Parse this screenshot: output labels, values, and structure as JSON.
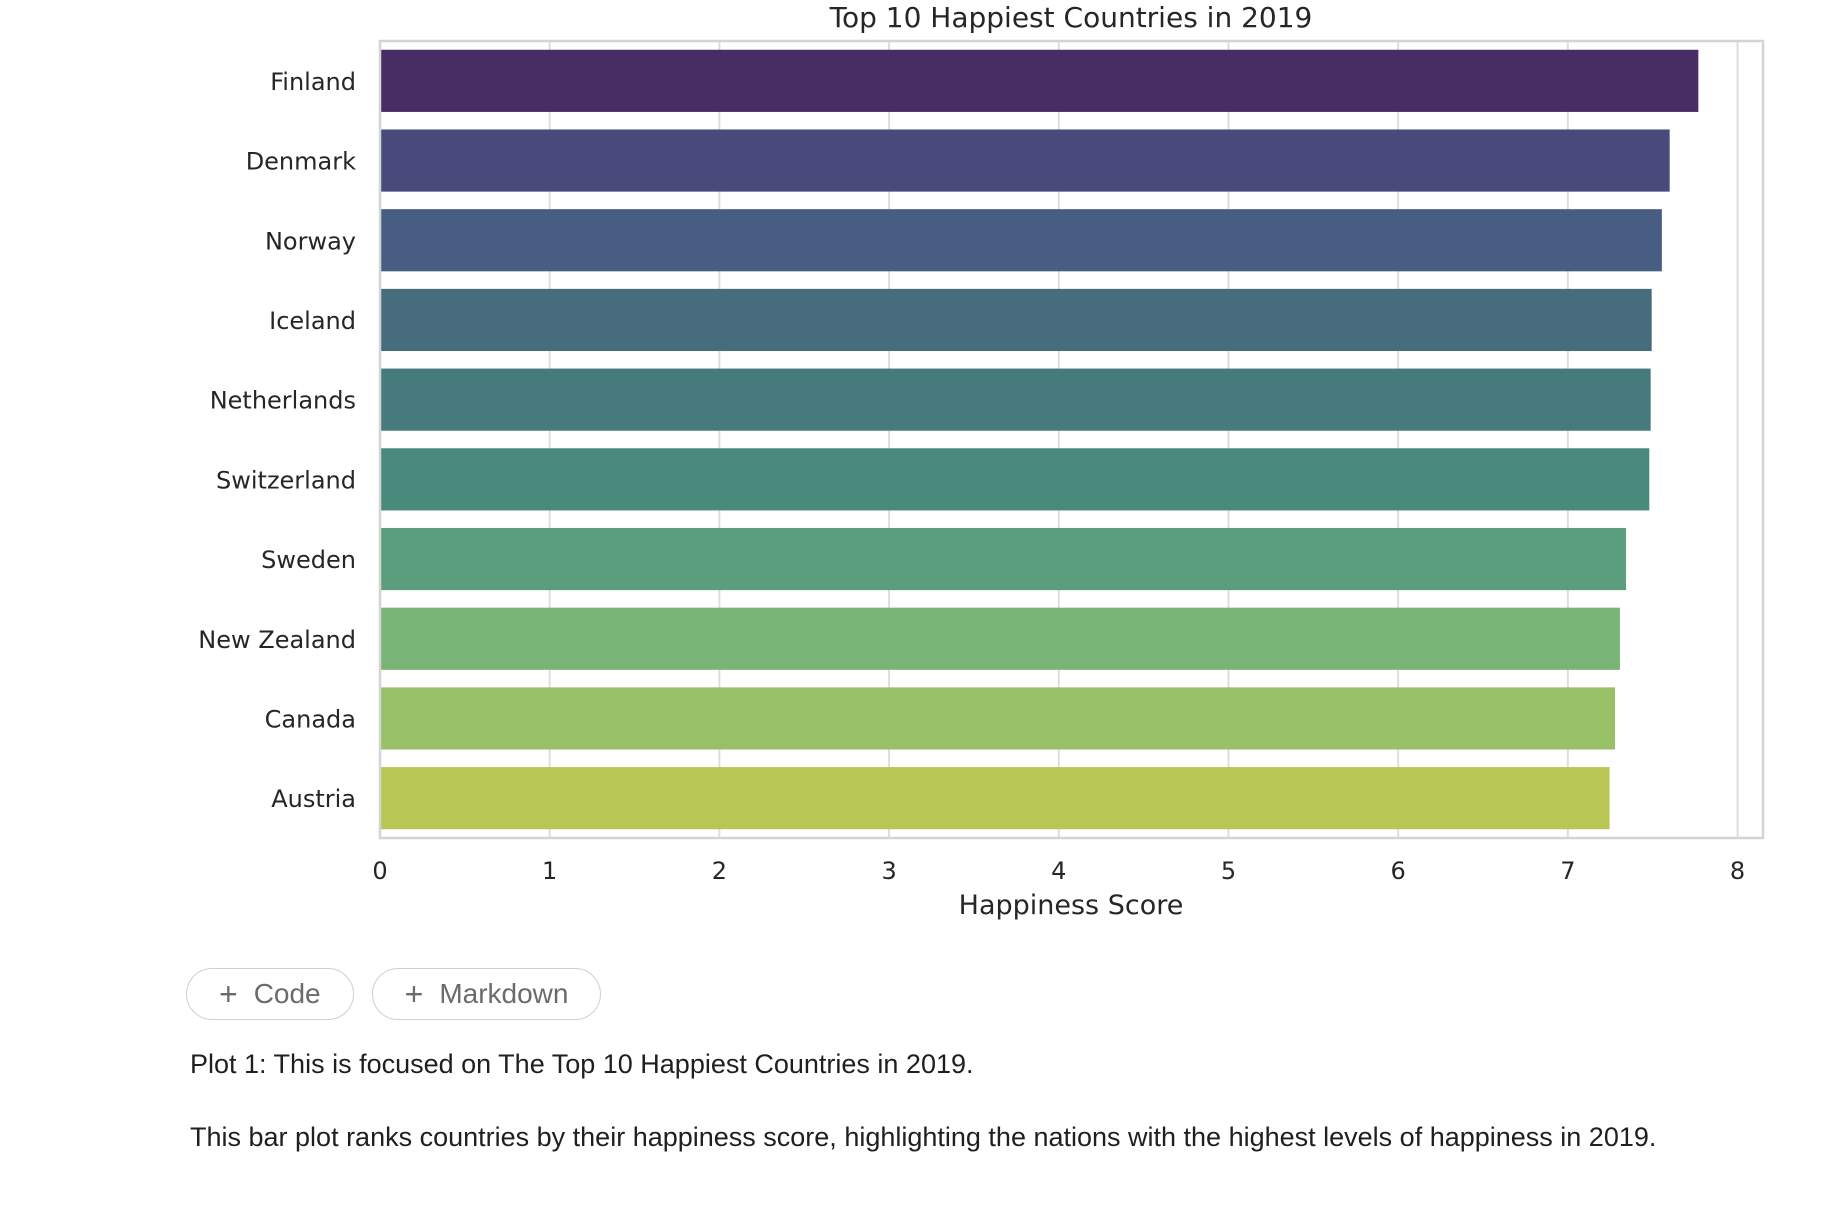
{
  "chart_data": {
    "type": "bar",
    "orientation": "horizontal",
    "title": "Top 10 Happiest Countries in 2019",
    "xlabel": "Happiness Score",
    "ylabel": "",
    "categories": [
      "Finland",
      "Denmark",
      "Norway",
      "Iceland",
      "Netherlands",
      "Switzerland",
      "Sweden",
      "New Zealand",
      "Canada",
      "Austria"
    ],
    "values": [
      7.769,
      7.6,
      7.554,
      7.494,
      7.488,
      7.48,
      7.343,
      7.307,
      7.278,
      7.246
    ],
    "colors": [
      "#482d64",
      "#484a7b",
      "#475e82",
      "#476c7e",
      "#467a7c",
      "#4a8a7c",
      "#5b9e7e",
      "#79b477",
      "#98c067",
      "#b7c655"
    ],
    "xlim": [
      0,
      8.15
    ],
    "xticks": [
      0,
      1,
      2,
      3,
      4,
      5,
      6,
      7,
      8
    ],
    "grid": true,
    "grid_color": "#dedede",
    "legend": "none"
  },
  "toolbar": {
    "code_label": "Code",
    "markdown_label": "Markdown",
    "plus_icon": "+"
  },
  "markdown": {
    "line1": "Plot 1: This is focused on The Top 10 Happiest Countries in 2019.",
    "line2": "This bar plot ranks countries by their happiness score, highlighting the nations with the highest levels of happiness in 2019."
  }
}
